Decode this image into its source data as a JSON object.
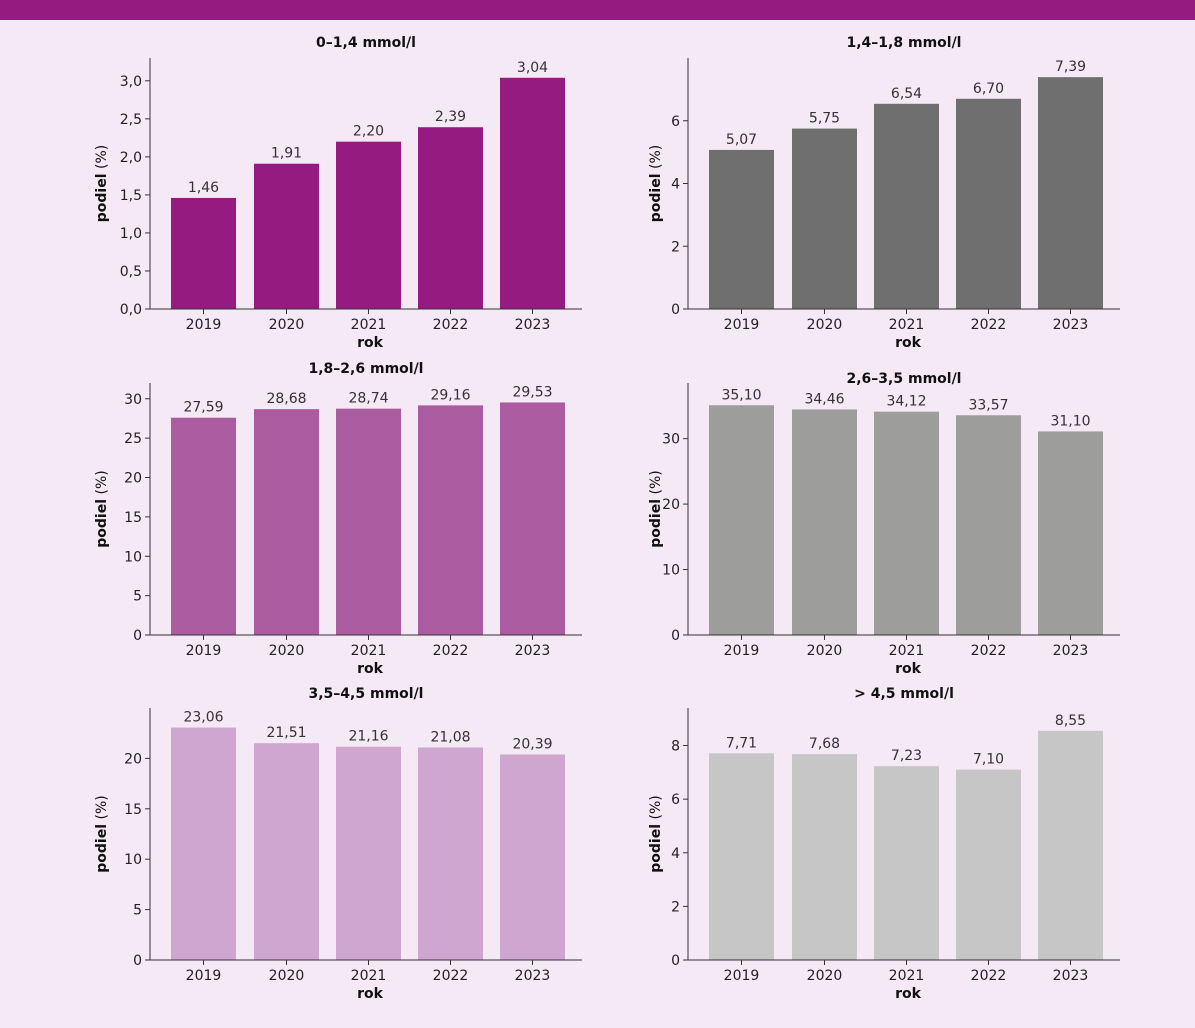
{
  "colors": {
    "topbar": "#951b81",
    "background": "#f5e9f5"
  },
  "chart_data": [
    {
      "type": "bar",
      "title": "0–1,4 mmol/l",
      "categories": [
        "2019",
        "2020",
        "2021",
        "2022",
        "2023"
      ],
      "values": [
        1.46,
        1.91,
        2.2,
        2.39,
        3.04
      ],
      "value_labels": [
        "1,46",
        "1,91",
        "2,20",
        "2,39",
        "3,04"
      ],
      "yticks": [
        0,
        0.5,
        1.0,
        1.5,
        2.0,
        2.5,
        3.0
      ],
      "ytick_labels": [
        "0,0",
        "0,5",
        "1,0",
        "1,5",
        "2,0",
        "2,5",
        "3,0"
      ],
      "ylim": [
        0,
        3.3
      ],
      "ylabel_bold": "podiel",
      "ylabel_rest": " (%)",
      "xlabel": "rok",
      "color": "#951b81"
    },
    {
      "type": "bar",
      "title": "1,4–1,8 mmol/l",
      "categories": [
        "2019",
        "2020",
        "2021",
        "2022",
        "2023"
      ],
      "values": [
        5.07,
        5.75,
        6.54,
        6.7,
        7.39
      ],
      "value_labels": [
        "5,07",
        "5,75",
        "6,54",
        "6,70",
        "7,39"
      ],
      "yticks": [
        0,
        2,
        4,
        6
      ],
      "ytick_labels": [
        "0",
        "2",
        "4",
        "6"
      ],
      "ylim": [
        0,
        8.0
      ],
      "ylabel_bold": "podiel",
      "ylabel_rest": " (%)",
      "xlabel": "rok",
      "color": "#6f6f6f"
    },
    {
      "type": "bar",
      "title": "1,8–2,6 mmol/l",
      "categories": [
        "2019",
        "2020",
        "2021",
        "2022",
        "2023"
      ],
      "values": [
        27.59,
        28.68,
        28.74,
        29.16,
        29.53
      ],
      "value_labels": [
        "27,59",
        "28,68",
        "28,74",
        "29,16",
        "29,53"
      ],
      "yticks": [
        0,
        5,
        10,
        15,
        20,
        25,
        30
      ],
      "ytick_labels": [
        "0",
        "5",
        "10",
        "15",
        "20",
        "25",
        "30"
      ],
      "ylim": [
        0,
        32
      ],
      "ylabel_bold": "podiel",
      "ylabel_rest": " (%)",
      "xlabel": "rok",
      "color": "#ab5ca0"
    },
    {
      "type": "bar",
      "title": "2,6–3,5 mmol/l",
      "categories": [
        "2019",
        "2020",
        "2021",
        "2022",
        "2023"
      ],
      "values": [
        35.1,
        34.46,
        34.12,
        33.57,
        31.1
      ],
      "value_labels": [
        "35,10",
        "34,46",
        "34,12",
        "33,57",
        "31,10"
      ],
      "yticks": [
        0,
        10,
        20,
        30
      ],
      "ytick_labels": [
        "0",
        "10",
        "20",
        "30"
      ],
      "ylim": [
        0,
        38.5
      ],
      "ylabel_bold": "podiel",
      "ylabel_rest": " (%)",
      "xlabel": "rok",
      "color": "#9d9d9c"
    },
    {
      "type": "bar",
      "title": "3,5–4,5 mmol/l",
      "categories": [
        "2019",
        "2020",
        "2021",
        "2022",
        "2023"
      ],
      "values": [
        23.06,
        21.51,
        21.16,
        21.08,
        20.39
      ],
      "value_labels": [
        "23,06",
        "21,51",
        "21,16",
        "21,08",
        "20,39"
      ],
      "yticks": [
        0,
        5,
        10,
        15,
        20
      ],
      "ytick_labels": [
        "0",
        "5",
        "10",
        "15",
        "20"
      ],
      "ylim": [
        0,
        25
      ],
      "ylabel_bold": "podiel",
      "ylabel_rest": " (%)",
      "xlabel": "rok",
      "color": "#cfa6cf"
    },
    {
      "type": "bar",
      "title": "> 4,5 mmol/l",
      "categories": [
        "2019",
        "2020",
        "2021",
        "2022",
        "2023"
      ],
      "values": [
        7.71,
        7.68,
        7.23,
        7.1,
        8.55
      ],
      "value_labels": [
        "7,71",
        "7,68",
        "7,23",
        "7,10",
        "8,55"
      ],
      "yticks": [
        0,
        2,
        4,
        6,
        8
      ],
      "ytick_labels": [
        "0",
        "2",
        "4",
        "6",
        "8"
      ],
      "ylim": [
        0,
        9.4
      ],
      "ylabel_bold": "podiel",
      "ylabel_rest": " (%)",
      "xlabel": "rok",
      "color": "#c6c6c6"
    }
  ]
}
